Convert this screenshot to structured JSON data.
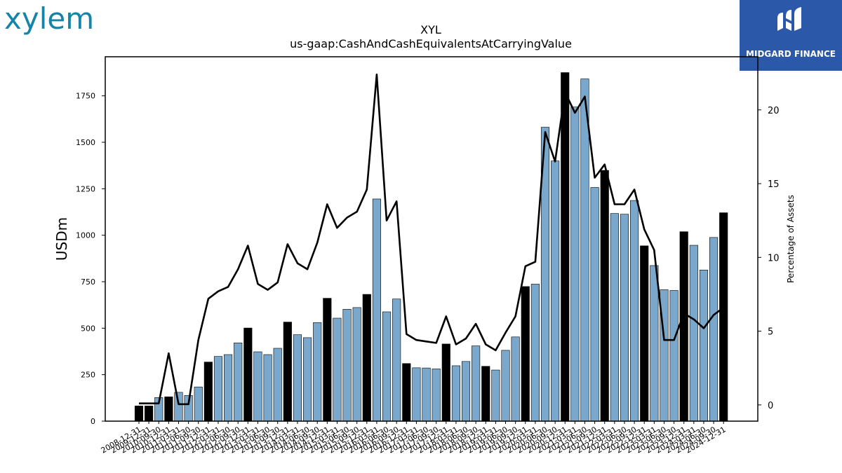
{
  "logos": {
    "left_text": "xylem",
    "right_text": "MIDGARD FINANCE"
  },
  "chart_data": {
    "type": "bar",
    "title": "XYL",
    "subtitle": "us-gaap:CashAndCashEquivalentsAtCarryingValue",
    "ylabel": "USDm",
    "y2label": "Percentage of Assets",
    "ylim": [
      0,
      1960
    ],
    "y2lim": [
      -1.1,
      23.6
    ],
    "yticks": [
      0,
      250,
      500,
      750,
      1000,
      1250,
      1500,
      1750
    ],
    "y2ticks": [
      0,
      5,
      10,
      15,
      20
    ],
    "x_tick_labels": [
      "2008-12-31",
      "2009-12-31",
      "2010-09-30",
      "2010-12-31",
      "2011-03-31",
      "2011-06-30",
      "2011-09-30",
      "2011-12-31",
      "2012-03-31",
      "2012-06-30",
      "2012-09-30",
      "2012-12-31",
      "2013-03-31",
      "2013-06-30",
      "2013-09-30",
      "2013-12-31",
      "2014-03-31",
      "2014-06-30",
      "2014-09-30",
      "2014-12-31",
      "2015-03-31",
      "2015-06-30",
      "2015-09-30",
      "2015-12-31",
      "2016-03-31",
      "2016-06-30",
      "2016-09-30",
      "2016-12-31",
      "2017-03-31",
      "2017-06-30",
      "2017-09-30",
      "2017-12-31",
      "2018-03-31",
      "2018-06-30",
      "2018-09-30",
      "2018-12-31",
      "2019-03-31",
      "2019-06-30",
      "2019-09-30",
      "2019-12-31",
      "2020-03-31",
      "2020-06-30",
      "2020-09-30",
      "2020-12-31",
      "2021-03-31",
      "2021-06-30",
      "2021-09-30",
      "2021-12-31",
      "2022-03-31",
      "2022-06-30",
      "2022-09-30",
      "2022-12-31",
      "2023-03-31",
      "2023-06-30",
      "2023-09-30",
      "2023-12-31",
      "2024-03-31",
      "2024-06-30",
      "2024-09-30",
      "2024-12-31"
    ],
    "series": [
      {
        "type": "bar",
        "values": [
          82,
          82,
          127,
          131,
          155,
          138,
          184,
          318,
          348,
          358,
          421,
          501,
          373,
          358,
          392,
          533,
          465,
          449,
          530,
          661,
          554,
          602,
          611,
          682,
          1195,
          588,
          657,
          310,
          287,
          286,
          281,
          415,
          298,
          321,
          405,
          295,
          275,
          381,
          453,
          724,
          737,
          1581,
          1400,
          1875,
          1690,
          1841,
          1257,
          1349,
          1117,
          1113,
          1187,
          943,
          837,
          707,
          703,
          1019,
          946,
          813,
          988,
          1121
        ],
        "year_end": [
          true,
          true,
          false,
          true,
          false,
          false,
          false,
          true,
          false,
          false,
          false,
          true,
          false,
          false,
          false,
          true,
          false,
          false,
          false,
          true,
          false,
          false,
          false,
          true,
          false,
          false,
          false,
          true,
          false,
          false,
          false,
          true,
          false,
          false,
          false,
          true,
          false,
          false,
          false,
          true,
          false,
          false,
          false,
          true,
          false,
          false,
          false,
          true,
          false,
          false,
          false,
          true,
          false,
          false,
          false,
          true,
          false,
          false,
          false,
          true
        ],
        "colors": {
          "year_end": "#000000",
          "quarter": "#7aa8cc"
        }
      },
      {
        "type": "line",
        "axis": "right",
        "values": [
          0.1,
          0.1,
          0.1,
          3.5,
          0.05,
          0.05,
          4.4,
          7.2,
          7.7,
          8.0,
          9.2,
          10.8,
          8.2,
          7.8,
          8.3,
          10.9,
          9.6,
          9.2,
          11.0,
          13.6,
          12.0,
          12.7,
          13.1,
          14.6,
          22.4,
          12.5,
          13.8,
          4.8,
          4.4,
          4.3,
          4.2,
          6.0,
          4.1,
          4.5,
          5.5,
          4.1,
          3.7,
          4.9,
          6.0,
          9.4,
          9.7,
          18.5,
          16.5,
          21.2,
          19.8,
          20.9,
          15.4,
          16.3,
          13.6,
          13.6,
          14.6,
          11.9,
          10.5,
          4.4,
          4.4,
          6.2,
          5.8,
          5.2,
          6.1,
          6.6
        ],
        "color": "#000000"
      }
    ]
  }
}
